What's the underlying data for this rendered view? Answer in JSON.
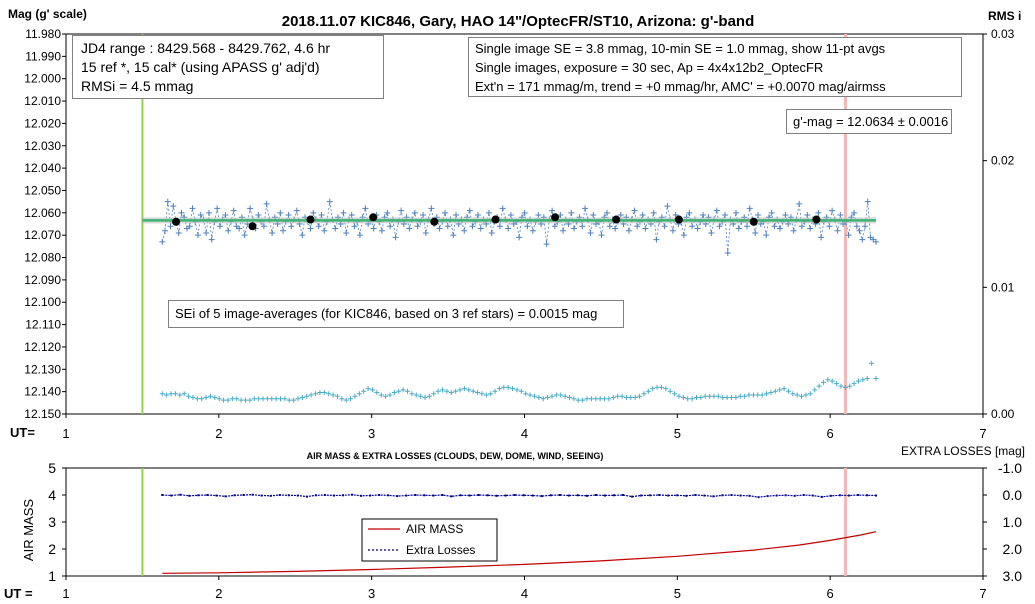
{
  "top_chart": {
    "title": "2018.11.07 KIC846, Gary, HAO 14\"/OptecFR/ST10, Arizona: g'-band",
    "y_label": "Mag (g' scale)",
    "y2_label": "RMS i",
    "x_label": "UT=",
    "info_left": [
      "JD4 range : 8429.568 - 8429.762,  4.6  hr",
      "15 ref *, 15 cal* (using APASS g' adj'd)",
      "RMSi = 4.5 mmag"
    ],
    "info_right": [
      "Single image SE = 3.8 mmag, 10-min SE = 1.0 mmag, show  11-pt avgs",
      "Single images, exposure = 30 sec, Ap = 4x4x12b2_OptecFR",
      "Ext'n = 171 mmag/m, trend =  +0 mmag/hr, AMC' = +0.0070 mag/airmss"
    ],
    "gmag_label": "g'-mag = 12.0634 ± 0.0016",
    "sei_label": "SEi of 5 image-averages (for KIC846, based on 3 ref stars) = 0.0015 mag"
  },
  "bottom_chart": {
    "title": "AIR MASS & EXTRA LOSSES (CLOUDS, DEW, DOME, WIND, SEEING)",
    "y_label": "AIR MASS",
    "y2_label": "EXTRA LOSSES [mag]",
    "x_label": "UT =",
    "legend": [
      "AIR MASS",
      "Extra Losses"
    ]
  },
  "colors": {
    "mag_points": "#4f81bd",
    "avg_points": "#000000",
    "fit_line": "#3cb371",
    "rms_points": "#4bacc6",
    "vline_green": "#92d050",
    "vline_pink": "#f4b6b6",
    "airmass": "#c00000",
    "extra_losses": "#00008b"
  },
  "chart_data": [
    {
      "type": "scatter",
      "title": "2018.11.07 KIC846, Gary, HAO 14\"/OptecFR/ST10, Arizona: g'-band",
      "xlabel": "UT=",
      "ylabel": "Mag (g' scale)",
      "y2label": "RMS i",
      "xlim": [
        1,
        7
      ],
      "ylim": [
        12.15,
        11.98
      ],
      "y2lim": [
        0.0,
        0.03
      ],
      "x_ticks": [
        "1",
        "2",
        "3",
        "4",
        "5",
        "6",
        "7"
      ],
      "y_ticks": [
        "11.980",
        "11.990",
        "12.000",
        "12.010",
        "12.020",
        "12.030",
        "12.040",
        "12.050",
        "12.060",
        "12.070",
        "12.080",
        "12.090",
        "12.100",
        "12.110",
        "12.120",
        "12.130",
        "12.140",
        "12.150"
      ],
      "y2_ticks": [
        "0.00",
        "0.01",
        "0.02",
        "0.03"
      ],
      "grid": false,
      "fit_line": {
        "x": [
          1.5,
          6.3
        ],
        "y": [
          12.0634,
          12.0634
        ]
      },
      "vlines": [
        1.5,
        6.1
      ],
      "series": [
        {
          "marker": "plus",
          "x_start": 1.63,
          "x_end": 6.3,
          "values": [
            12.073,
            12.068,
            12.055,
            12.066,
            12.057,
            12.064,
            12.069,
            12.06,
            12.062,
            12.067,
            12.066,
            12.058,
            12.064,
            12.07,
            12.061,
            12.063,
            12.069,
            12.06,
            12.072,
            12.064,
            12.058,
            12.066,
            12.063,
            12.061,
            12.068,
            12.064,
            12.059,
            12.066,
            12.067,
            12.062,
            12.07,
            12.065,
            12.058,
            12.063,
            12.067,
            12.061,
            12.064,
            12.066,
            12.056,
            12.063,
            12.069,
            12.062,
            12.065,
            12.06,
            12.068,
            12.064,
            12.061,
            12.066,
            12.063,
            12.059,
            12.065,
            12.07,
            12.062,
            12.064,
            12.067,
            12.06,
            12.063,
            12.066,
            12.061,
            12.068,
            12.064,
            12.055,
            12.063,
            12.067,
            12.062,
            12.065,
            12.06,
            12.069,
            12.063,
            12.061,
            12.066,
            12.064,
            12.07,
            12.062,
            12.058,
            12.065,
            12.063,
            12.067,
            12.061,
            12.064,
            12.068,
            12.062,
            12.06,
            12.066,
            12.063,
            12.071,
            12.064,
            12.059,
            12.065,
            12.062,
            12.067,
            12.063,
            12.06,
            12.066,
            12.064,
            12.061,
            12.069,
            12.063,
            12.058,
            12.065,
            12.062,
            12.067,
            12.064,
            12.06,
            12.066,
            12.063,
            12.07,
            12.061,
            12.065,
            12.063,
            12.068,
            12.062,
            12.059,
            12.066,
            12.064,
            12.061,
            12.067,
            12.063,
            12.065,
            12.06,
            12.069,
            12.064,
            12.062,
            12.066,
            12.058,
            12.063,
            12.067,
            12.061,
            12.065,
            12.064,
            12.071,
            12.062,
            12.06,
            12.066,
            12.063,
            12.068,
            12.064,
            12.061,
            12.065,
            12.062,
            12.074,
            12.063,
            12.059,
            12.066,
            12.064,
            12.061,
            12.068,
            12.063,
            12.065,
            12.06,
            12.067,
            12.064,
            12.062,
            12.066,
            12.058,
            12.063,
            12.069,
            12.061,
            12.065,
            12.064,
            12.07,
            12.062,
            12.06,
            12.066,
            12.063,
            12.067,
            12.064,
            12.061,
            12.065,
            12.062,
            12.068,
            12.063,
            12.059,
            12.066,
            12.064,
            12.061,
            12.067,
            12.063,
            12.065,
            12.06,
            12.072,
            12.064,
            12.062,
            12.066,
            12.057,
            12.063,
            12.068,
            12.061,
            12.065,
            12.064,
            12.07,
            12.062,
            12.06,
            12.066,
            12.063,
            12.067,
            12.064,
            12.061,
            12.065,
            12.062,
            12.069,
            12.063,
            12.059,
            12.066,
            12.064,
            12.061,
            12.078,
            12.063,
            12.065,
            12.06,
            12.067,
            12.064,
            12.062,
            12.066,
            12.058,
            12.063,
            12.069,
            12.061,
            12.065,
            12.064,
            12.07,
            12.062,
            12.06,
            12.066,
            12.063,
            12.067,
            12.064,
            12.061,
            12.065,
            12.062,
            12.068,
            12.063,
            12.056,
            12.066,
            12.064,
            12.061,
            12.067,
            12.063,
            12.065,
            12.06,
            12.071,
            12.064,
            12.062,
            12.066,
            12.059,
            12.063,
            12.068,
            12.061,
            12.065,
            12.064,
            12.07,
            12.062,
            12.06,
            12.066,
            12.068,
            12.072,
            12.066,
            12.055,
            12.071,
            12.072,
            12.073
          ]
        },
        {
          "marker": "dot",
          "x": [
            1.72,
            2.22,
            2.6,
            3.01,
            3.41,
            3.81,
            4.2,
            4.6,
            5.01,
            5.5,
            5.91
          ],
          "values": [
            12.064,
            12.066,
            12.063,
            12.062,
            12.064,
            12.063,
            12.062,
            12.063,
            12.063,
            12.064,
            12.063
          ]
        },
        {
          "name": "RMS i",
          "axis": "right",
          "marker": "plus",
          "x_start": 1.63,
          "x_end": 6.3,
          "values": [
            0.0016,
            0.0015,
            0.0016,
            0.0016,
            0.0015,
            0.0016,
            0.0014,
            0.0013,
            0.0012,
            0.0012,
            0.0013,
            0.0014,
            0.0013,
            0.0012,
            0.0011,
            0.0011,
            0.0012,
            0.0012,
            0.0011,
            0.0011,
            0.0011,
            0.0012,
            0.0012,
            0.0012,
            0.0012,
            0.0012,
            0.0012,
            0.0012,
            0.0012,
            0.0011,
            0.0011,
            0.0012,
            0.0013,
            0.0014,
            0.0015,
            0.0016,
            0.0017,
            0.0017,
            0.0016,
            0.0015,
            0.0014,
            0.0012,
            0.0011,
            0.0012,
            0.0014,
            0.0016,
            0.0018,
            0.002,
            0.0019,
            0.0017,
            0.0015,
            0.0014,
            0.0015,
            0.0017,
            0.0018,
            0.0019,
            0.0018,
            0.0016,
            0.0015,
            0.0014,
            0.0013,
            0.0014,
            0.0016,
            0.0018,
            0.0019,
            0.0018,
            0.0017,
            0.0018,
            0.0019,
            0.002,
            0.0019,
            0.0018,
            0.0017,
            0.0016,
            0.0015,
            0.0016,
            0.0018,
            0.002,
            0.0021,
            0.0021,
            0.002,
            0.0019,
            0.0018,
            0.0016,
            0.0015,
            0.0014,
            0.0013,
            0.0012,
            0.0013,
            0.0014,
            0.0015,
            0.0015,
            0.0014,
            0.0013,
            0.0012,
            0.0011,
            0.0011,
            0.0012,
            0.0012,
            0.0012,
            0.0012,
            0.0012,
            0.0012,
            0.0013,
            0.0014,
            0.0014,
            0.0013,
            0.0013,
            0.0013,
            0.0014,
            0.0016,
            0.0018,
            0.002,
            0.0021,
            0.0021,
            0.002,
            0.0018,
            0.0016,
            0.0014,
            0.0013,
            0.0012,
            0.0012,
            0.0013,
            0.0013,
            0.0014,
            0.0014,
            0.0014,
            0.0014,
            0.0013,
            0.0013,
            0.0013,
            0.0013,
            0.0014,
            0.0014,
            0.0015,
            0.0015,
            0.0015,
            0.0015,
            0.0016,
            0.0017,
            0.0018,
            0.0019,
            0.002,
            0.0018,
            0.0016,
            0.0015,
            0.0014,
            0.0015,
            0.0016,
            0.0019,
            0.0022,
            0.0025,
            0.0027,
            0.0026,
            0.0024,
            0.0022,
            0.0021,
            0.0022,
            0.0024,
            0.0026,
            0.0027,
            0.0028,
            0.004,
            0.0028
          ]
        }
      ]
    },
    {
      "type": "line",
      "title": "AIR MASS & EXTRA LOSSES (CLOUDS, DEW, DOME, WIND, SEEING)",
      "xlabel": "UT =",
      "ylabel": "AIR MASS",
      "y2label": "EXTRA LOSSES [mag]",
      "xlim": [
        1,
        7
      ],
      "ylim": [
        1,
        5
      ],
      "y2lim": [
        3.0,
        -1.0
      ],
      "x_ticks": [
        "1",
        "2",
        "3",
        "4",
        "5",
        "6",
        "7"
      ],
      "y_ticks": [
        "1",
        "2",
        "3",
        "4",
        "5"
      ],
      "y2_ticks": [
        "-1.0",
        "0.0",
        "1.0",
        "2.0",
        "3.0"
      ],
      "grid": false,
      "legend_position": "center-left",
      "vlines": [
        1.5,
        6.1
      ],
      "series": [
        {
          "name": "AIR MASS",
          "x": [
            1.63,
            2.0,
            2.5,
            3.0,
            3.5,
            4.0,
            4.5,
            5.0,
            5.5,
            5.8,
            6.0,
            6.2,
            6.3
          ],
          "values": [
            1.1,
            1.12,
            1.17,
            1.24,
            1.33,
            1.43,
            1.56,
            1.73,
            1.96,
            2.15,
            2.32,
            2.52,
            2.64
          ]
        },
        {
          "name": "Extra Losses",
          "axis": "right",
          "x_start": 1.63,
          "x_end": 6.3,
          "values": [
            0.0,
            0.02,
            -0.01,
            0.03,
            0.01,
            0.0,
            0.02,
            0.05,
            0.01,
            0.0,
            -0.01,
            0.02,
            0.03,
            0.0,
            0.01,
            0.02,
            0.06,
            0.01,
            0.0,
            0.02,
            0.01,
            -0.01,
            0.03,
            0.02,
            0.0,
            0.01,
            0.04,
            0.02,
            0.0,
            0.01,
            0.02,
            0.0,
            0.05,
            0.01,
            0.02,
            0.0,
            0.01,
            0.03,
            0.02,
            0.0,
            0.01,
            0.02,
            0.04,
            0.01,
            0.0,
            0.02,
            0.01,
            0.03,
            0.0,
            0.02,
            0.01,
            0.0,
            0.06,
            0.02,
            0.01,
            0.0,
            0.02,
            0.01,
            0.03,
            0.0,
            0.02,
            0.05,
            0.01,
            0.0,
            0.02,
            0.03,
            0.08,
            0.04,
            0.02,
            0.01,
            0.03,
            0.0,
            0.02,
            0.07,
            0.03,
            0.01,
            0.02,
            0.0,
            0.01,
            0.02
          ]
        }
      ]
    }
  ]
}
